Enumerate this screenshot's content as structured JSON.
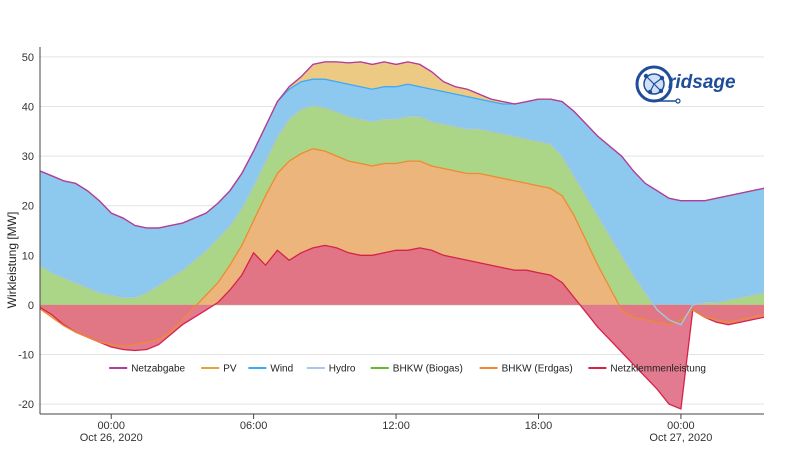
{
  "chart_data": {
    "type": "area",
    "ylabel": "Wirkleistung [MW]",
    "ylim": [
      -22,
      52
    ],
    "y_ticks": [
      50,
      40,
      30,
      20,
      10,
      0,
      -10,
      -20
    ],
    "x_range_hours": [
      -3,
      27.5
    ],
    "x_ticks": [
      {
        "hour": 0,
        "time": "00:00",
        "date": "Oct 26, 2020"
      },
      {
        "hour": 6,
        "time": "06:00",
        "date": ""
      },
      {
        "hour": 12,
        "time": "12:00",
        "date": ""
      },
      {
        "hour": 18,
        "time": "18:00",
        "date": ""
      },
      {
        "hour": 24,
        "time": "00:00",
        "date": "Oct 27, 2020"
      }
    ],
    "grid": true,
    "legend_position": "bottom-center",
    "legend": [
      {
        "name": "Netzabgabe",
        "color": "#b03aa6"
      },
      {
        "name": "PV",
        "color": "#e6a23c"
      },
      {
        "name": "Wind",
        "color": "#3fa9f5"
      },
      {
        "name": "Hydro",
        "color": "#a8c8f0"
      },
      {
        "name": "BHKW (Biogas)",
        "color": "#6ab82e"
      },
      {
        "name": "BHKW (Erdgas)",
        "color": "#f08a30"
      },
      {
        "name": "Netzklemmenleistung",
        "color": "#d6224a"
      }
    ],
    "x": [
      -3,
      -2.5,
      -2,
      -1.5,
      -1,
      -0.5,
      0,
      0.5,
      1,
      1.5,
      2,
      2.5,
      3,
      3.5,
      4,
      4.5,
      5,
      5.5,
      6,
      6.5,
      7,
      7.5,
      8,
      8.5,
      9,
      9.5,
      10,
      10.5,
      11,
      11.5,
      12,
      12.5,
      13,
      13.5,
      14,
      14.5,
      15,
      15.5,
      16,
      16.5,
      17,
      17.5,
      18,
      18.5,
      19,
      19.5,
      20,
      20.5,
      21,
      21.5,
      22,
      22.5,
      23,
      23.5,
      24,
      24.5,
      25,
      25.5,
      26,
      26.5,
      27,
      27.5
    ],
    "series": [
      {
        "name": "Netzklemmenleistung",
        "color": "#d6224a",
        "fill": "#e07086",
        "values": [
          -0.5,
          -2,
          -4,
          -5.5,
          -6.5,
          -7.5,
          -8.5,
          -9,
          -9.2,
          -9,
          -8,
          -6,
          -4,
          -2.5,
          -1,
          0.5,
          3,
          6,
          10.5,
          8,
          11,
          9,
          10.5,
          11.5,
          12,
          11.5,
          10.5,
          10,
          10,
          10.5,
          11,
          11,
          11.5,
          11,
          10,
          9.5,
          9,
          8.5,
          8,
          7.5,
          7,
          7,
          6.5,
          6,
          4.5,
          1.5,
          -1.5,
          -4.5,
          -7,
          -9.5,
          -12,
          -14.5,
          -17,
          -20,
          -21,
          -1,
          -2.5,
          -3.5,
          -4,
          -3.5,
          -3,
          -2.5
        ]
      },
      {
        "name": "BHKW (Erdgas)",
        "color": "#f08a30",
        "fill": "#f0b27a",
        "values": [
          -0.8,
          -2.5,
          -4.2,
          -5.5,
          -6.5,
          -7.5,
          -8,
          -8.3,
          -8,
          -7.5,
          -7,
          -5.5,
          -3,
          -0.5,
          2,
          4.5,
          8,
          12,
          17,
          22,
          26.5,
          29,
          30.5,
          31.5,
          31,
          30,
          29,
          28.5,
          28,
          28.5,
          28.5,
          29,
          29,
          28,
          27.5,
          27,
          26.5,
          26.5,
          26,
          25.5,
          25,
          24.5,
          24,
          23.5,
          22,
          18,
          13,
          8,
          3.5,
          -1,
          -2.5,
          -3,
          -3.5,
          -4,
          -3,
          -1,
          -2.5,
          -3,
          -3.5,
          -3,
          -2.5,
          -2
        ]
      },
      {
        "name": "BHKW (Biogas)",
        "color": "#6ab82e",
        "fill": "#a8d67e",
        "values": [
          8,
          6.5,
          5.5,
          4.5,
          3.5,
          2.5,
          2,
          1.5,
          1.5,
          2.5,
          4,
          5.5,
          7,
          9,
          11,
          13.5,
          16,
          19.5,
          24,
          29,
          34,
          37.5,
          39.5,
          40.2,
          39.8,
          39,
          38,
          37.5,
          37,
          37.5,
          37.5,
          38,
          38,
          37,
          36.5,
          36,
          35.5,
          35.5,
          35,
          34.5,
          34,
          33.5,
          33,
          32.5,
          30,
          26,
          22,
          18,
          14,
          10,
          6,
          2.5,
          -1,
          -3,
          -4,
          0,
          0.5,
          0.5,
          1,
          1.5,
          2,
          2.5
        ]
      },
      {
        "name": "Hydro",
        "color": "#a8c8f0",
        "fill": "#c9dcf3",
        "values": [
          8,
          6.5,
          5.5,
          4.5,
          3.5,
          2.5,
          2,
          1.5,
          1.5,
          2.5,
          4,
          5.5,
          7,
          9,
          11,
          13.5,
          16,
          19.5,
          24,
          29,
          34,
          37.5,
          39.5,
          40.2,
          39.8,
          39,
          38,
          37.5,
          37,
          37.5,
          37.5,
          38,
          38,
          37,
          36.5,
          36,
          35.5,
          35.5,
          35,
          34.5,
          34,
          33.5,
          33,
          32.5,
          30,
          26,
          22,
          18,
          14,
          10,
          6,
          2.5,
          -1,
          -3,
          -4,
          0,
          0.5,
          0.5,
          1,
          1.5,
          2,
          2.5
        ]
      },
      {
        "name": "Wind",
        "color": "#3fa9f5",
        "fill": "#84c8f8",
        "values": [
          27,
          26,
          25,
          24.5,
          23,
          21,
          18.5,
          17.5,
          16,
          15.5,
          15.5,
          16,
          16.5,
          17.5,
          18.5,
          20.5,
          23,
          26.5,
          31,
          36,
          41,
          43.5,
          45,
          45.5,
          45.5,
          45,
          44.5,
          44,
          43.5,
          44,
          44,
          44.5,
          44,
          43.5,
          43,
          42.5,
          42,
          41.5,
          41,
          40.5,
          40.5,
          41,
          41.5,
          41.5,
          41,
          39,
          36.5,
          34,
          32,
          30,
          27,
          24.5,
          23,
          21.5,
          21,
          21,
          21,
          21.5,
          22,
          22.5,
          23,
          23.5
        ]
      },
      {
        "name": "PV",
        "color": "#e6a23c",
        "fill": "#ecc57a",
        "values": [
          27,
          26,
          25,
          24.5,
          23,
          21,
          18.5,
          17.5,
          16,
          15.5,
          15.5,
          16,
          16.5,
          17.5,
          18.5,
          20.5,
          23,
          26.5,
          31,
          36,
          41,
          44,
          46,
          48.5,
          49,
          49,
          48.8,
          49,
          48.5,
          49,
          48.5,
          49,
          48.5,
          47,
          45,
          44,
          43.5,
          42.5,
          41.5,
          41,
          40.5,
          41,
          41.5,
          41.5,
          41,
          39,
          36.5,
          34,
          32,
          30,
          27,
          24.5,
          23,
          21.5,
          21,
          21,
          21,
          21.5,
          22,
          22.5,
          23,
          23.5
        ]
      },
      {
        "name": "Netzabgabe",
        "color": "#b03aa6",
        "fill": "none",
        "values": [
          27,
          26,
          25,
          24.5,
          23,
          21,
          18.5,
          17.5,
          16,
          15.5,
          15.5,
          16,
          16.5,
          17.5,
          18.5,
          20.5,
          23,
          26.5,
          31,
          36,
          41,
          44,
          46,
          48.5,
          49,
          49,
          48.8,
          49,
          48.5,
          49,
          48.5,
          49,
          48.5,
          47,
          45,
          44,
          43.5,
          42.5,
          41.5,
          41,
          40.5,
          41,
          41.5,
          41.5,
          41,
          39,
          36.5,
          34,
          32,
          30,
          27,
          24.5,
          23,
          21.5,
          21,
          21,
          21,
          21.5,
          22,
          22.5,
          23,
          23.5
        ]
      }
    ]
  },
  "logo": {
    "text": "Gridsage",
    "primary_color": "#1f4d9a",
    "accent_color": "#e6a23c"
  }
}
